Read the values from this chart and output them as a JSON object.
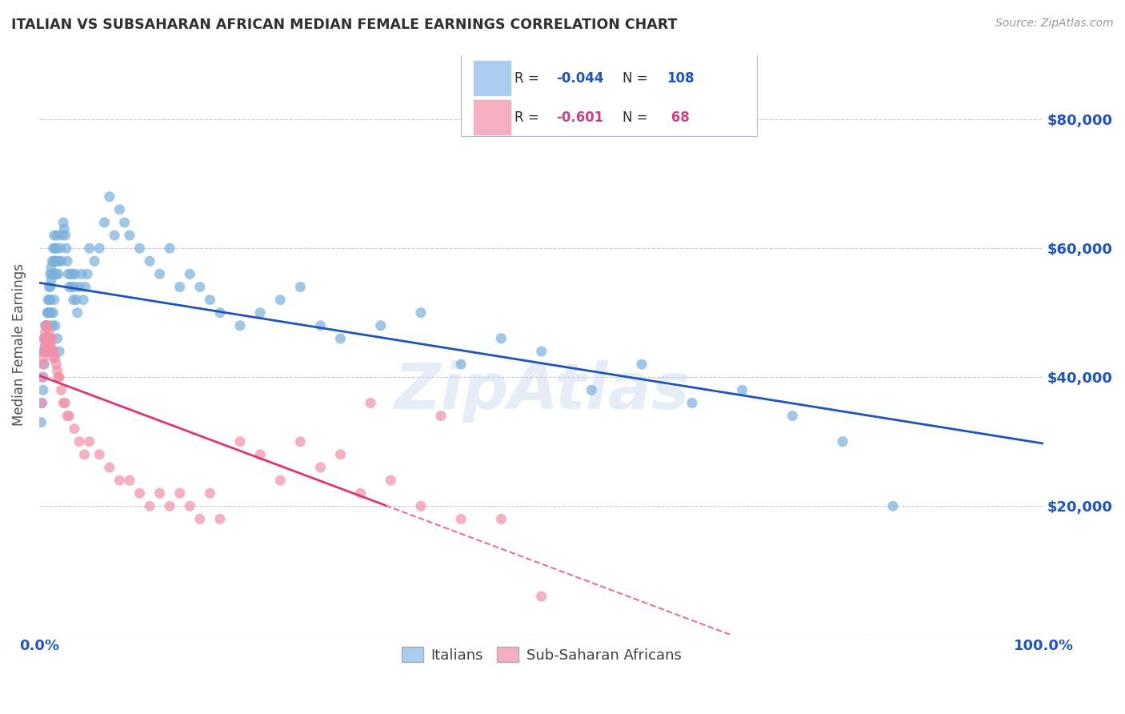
{
  "title": "ITALIAN VS SUBSAHARAN AFRICAN MEDIAN FEMALE EARNINGS CORRELATION CHART",
  "source_text": "Source: ZipAtlas.com",
  "ylabel": "Median Female Earnings",
  "xlim": [
    0,
    1
  ],
  "ylim": [
    0,
    90000
  ],
  "yticks": [
    0,
    20000,
    40000,
    60000,
    80000
  ],
  "ytick_labels": [
    "",
    "$20,000",
    "$40,000",
    "$60,000",
    "$80,000"
  ],
  "xtick_labels": [
    "0.0%",
    "100.0%"
  ],
  "legend_r_n": [
    {
      "r": "-0.044",
      "n": "108",
      "color": "#2055b8"
    },
    {
      "r": "-0.601",
      "n": " 68",
      "color": "#cc4488"
    }
  ],
  "italian_color": "#7ab0dc",
  "subsaharan_color": "#f090a8",
  "italian_line_color": "#2055b8",
  "subsaharan_line_color": "#dd3377",
  "watermark": "ZipAtlas",
  "background_color": "#ffffff",
  "grid_color": "#c8c8d8",
  "title_color": "#303030",
  "axis_label_color": "#505050",
  "tick_label_color": "#2055b8",
  "legend_box_color": "#aaccee",
  "legend_box2_color": "#f4b0c0",
  "it_x": [
    0.002,
    0.003,
    0.004,
    0.004,
    0.005,
    0.005,
    0.006,
    0.006,
    0.007,
    0.007,
    0.008,
    0.008,
    0.009,
    0.009,
    0.01,
    0.01,
    0.011,
    0.011,
    0.012,
    0.012,
    0.013,
    0.013,
    0.014,
    0.014,
    0.015,
    0.015,
    0.016,
    0.016,
    0.017,
    0.017,
    0.018,
    0.018,
    0.019,
    0.02,
    0.021,
    0.022,
    0.023,
    0.024,
    0.025,
    0.026,
    0.027,
    0.028,
    0.029,
    0.03,
    0.031,
    0.032,
    0.033,
    0.034,
    0.035,
    0.036,
    0.037,
    0.038,
    0.04,
    0.042,
    0.044,
    0.046,
    0.048,
    0.05,
    0.055,
    0.06,
    0.065,
    0.07,
    0.075,
    0.08,
    0.085,
    0.09,
    0.1,
    0.11,
    0.12,
    0.13,
    0.14,
    0.15,
    0.16,
    0.17,
    0.18,
    0.2,
    0.22,
    0.24,
    0.26,
    0.28,
    0.3,
    0.34,
    0.38,
    0.42,
    0.46,
    0.5,
    0.55,
    0.6,
    0.65,
    0.7,
    0.75,
    0.8,
    0.85,
    0.004,
    0.005,
    0.006,
    0.007,
    0.008,
    0.009,
    0.01,
    0.011,
    0.012,
    0.013,
    0.014,
    0.015,
    0.016,
    0.018,
    0.02
  ],
  "it_y": [
    33000,
    36000,
    38000,
    40000,
    42000,
    44000,
    44000,
    46000,
    46000,
    48000,
    48000,
    50000,
    50000,
    52000,
    52000,
    54000,
    54000,
    56000,
    55000,
    57000,
    56000,
    58000,
    56000,
    60000,
    58000,
    62000,
    58000,
    60000,
    56000,
    60000,
    58000,
    62000,
    56000,
    58000,
    60000,
    58000,
    62000,
    64000,
    63000,
    62000,
    60000,
    58000,
    56000,
    54000,
    56000,
    54000,
    56000,
    52000,
    54000,
    56000,
    52000,
    50000,
    54000,
    56000,
    52000,
    54000,
    56000,
    60000,
    58000,
    60000,
    64000,
    68000,
    62000,
    66000,
    64000,
    62000,
    60000,
    58000,
    56000,
    60000,
    54000,
    56000,
    54000,
    52000,
    50000,
    48000,
    50000,
    52000,
    54000,
    48000,
    46000,
    48000,
    50000,
    42000,
    46000,
    44000,
    38000,
    42000,
    36000,
    38000,
    34000,
    30000,
    20000,
    44000,
    46000,
    48000,
    46000,
    48000,
    46000,
    50000,
    52000,
    50000,
    48000,
    50000,
    52000,
    48000,
    46000,
    44000
  ],
  "ss_x": [
    0.002,
    0.003,
    0.004,
    0.005,
    0.005,
    0.006,
    0.006,
    0.007,
    0.007,
    0.008,
    0.008,
    0.009,
    0.009,
    0.01,
    0.01,
    0.011,
    0.011,
    0.012,
    0.012,
    0.013,
    0.013,
    0.014,
    0.015,
    0.016,
    0.017,
    0.018,
    0.019,
    0.02,
    0.022,
    0.024,
    0.026,
    0.028,
    0.03,
    0.035,
    0.04,
    0.045,
    0.05,
    0.06,
    0.07,
    0.08,
    0.09,
    0.1,
    0.11,
    0.12,
    0.13,
    0.14,
    0.15,
    0.16,
    0.17,
    0.18,
    0.2,
    0.22,
    0.24,
    0.26,
    0.28,
    0.3,
    0.32,
    0.35,
    0.38,
    0.42,
    0.46,
    0.5,
    0.004,
    0.006,
    0.008,
    0.01,
    0.33,
    0.4
  ],
  "ss_y": [
    36000,
    40000,
    42000,
    44000,
    46000,
    45000,
    47000,
    46000,
    48000,
    46000,
    48000,
    44000,
    46000,
    45000,
    47000,
    44000,
    46000,
    45000,
    44000,
    44000,
    46000,
    43000,
    44000,
    43000,
    42000,
    41000,
    40000,
    40000,
    38000,
    36000,
    36000,
    34000,
    34000,
    32000,
    30000,
    28000,
    30000,
    28000,
    26000,
    24000,
    24000,
    22000,
    20000,
    22000,
    20000,
    22000,
    20000,
    18000,
    22000,
    18000,
    30000,
    28000,
    24000,
    30000,
    26000,
    28000,
    22000,
    24000,
    20000,
    18000,
    18000,
    6000,
    43000,
    45000,
    44000,
    46000,
    36000,
    34000
  ]
}
